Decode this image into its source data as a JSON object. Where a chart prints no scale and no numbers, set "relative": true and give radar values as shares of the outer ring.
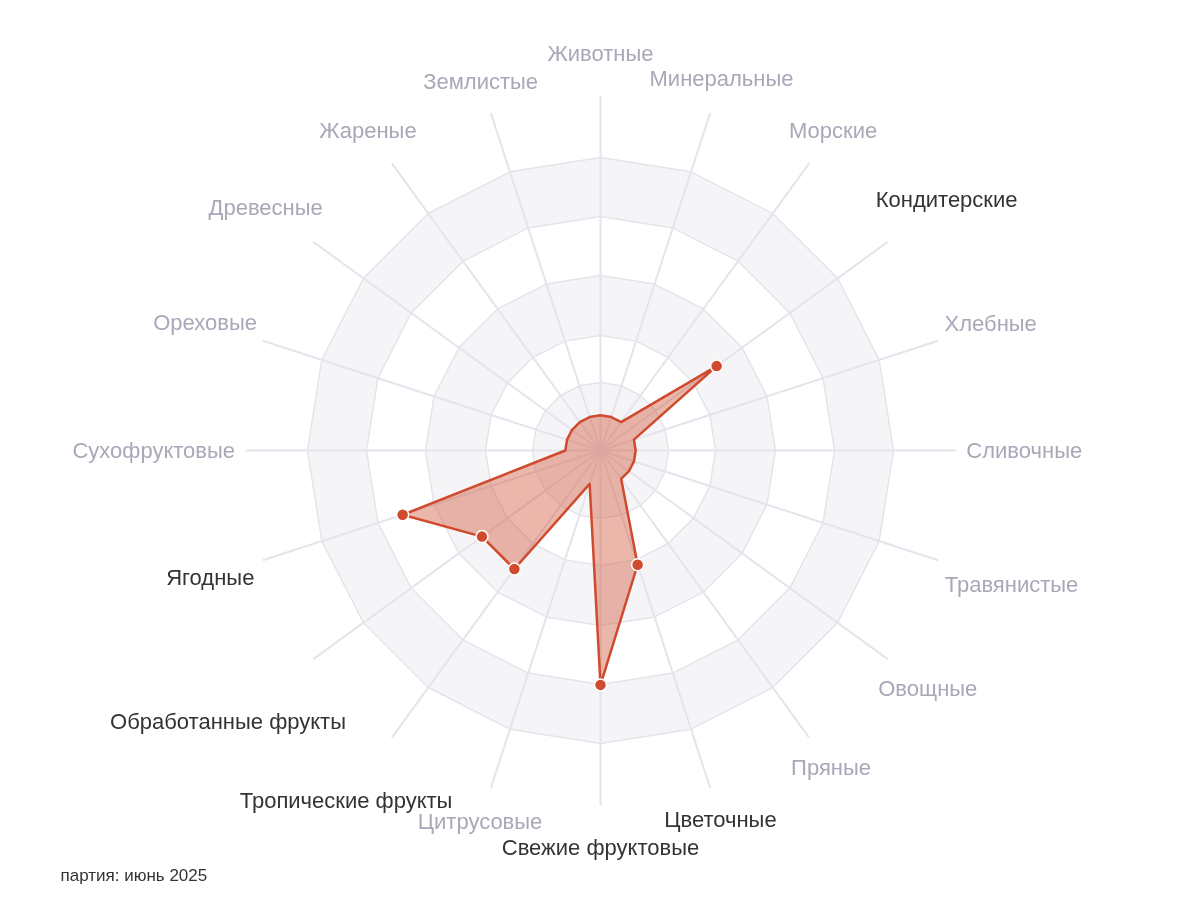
{
  "chart_data": {
    "type": "radar",
    "relative": true,
    "categories": [
      "Животные",
      "Минеральные",
      "Морские",
      "Кондитерские",
      "Хлебные",
      "Сливочные",
      "Травянистые",
      "Овощные",
      "Пряные",
      "Цветочные",
      "Свежие фруктовые",
      "Цитрусовые",
      "Тропические фрукты",
      "Обработанные фрукты",
      "Ягодные",
      "Сухофруктовые",
      "Ореховые",
      "Древесные",
      "Жареные",
      "Землистые"
    ],
    "series": [
      {
        "color": "#d04a2e",
        "values": [
          0.12,
          0.12,
          0.12,
          0.49,
          0.12,
          0.12,
          0.12,
          0.12,
          0.12,
          0.41,
          0.8,
          0.12,
          0.5,
          0.5,
          0.71,
          0.12,
          0.12,
          0.12,
          0.12,
          0.12
        ]
      }
    ],
    "marker": "circle",
    "grid": true,
    "annotations": [
      "партия: июнь 2025"
    ]
  }
}
